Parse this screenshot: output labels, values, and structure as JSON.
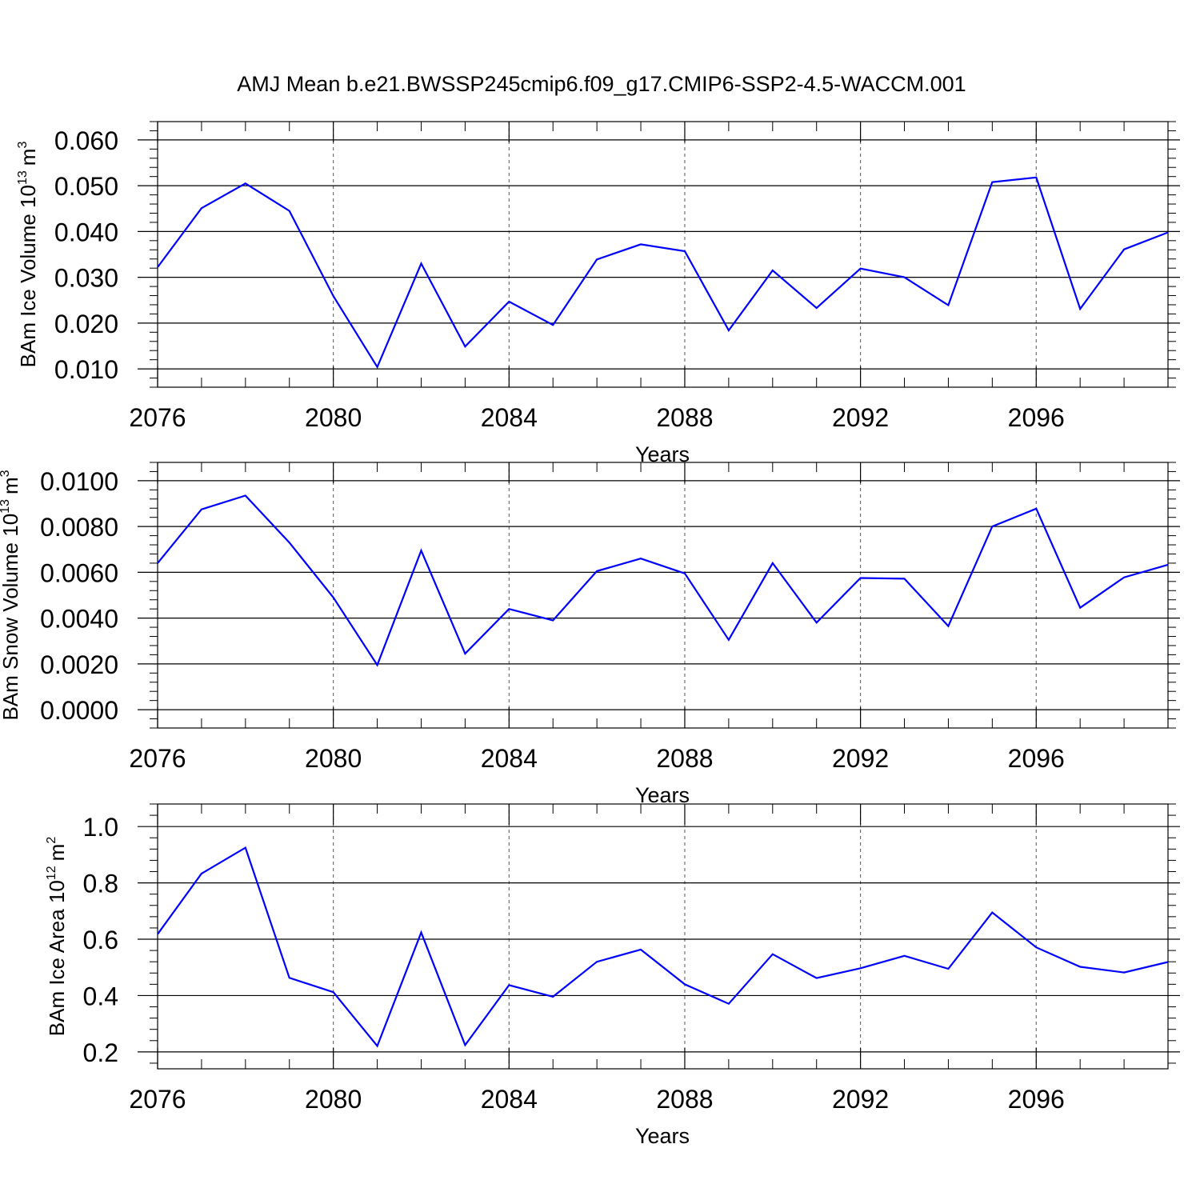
{
  "figure_title": "AMJ Mean b.e21.BWSSP245cmip6.f09_g17.CMIP6-SSP2-4.5-WACCM.001",
  "series_color": "#0000ff",
  "chart_data": [
    {
      "type": "line",
      "title": "AMJ Mean b.e21.BWSSP245cmip6.f09_g17.CMIP6-SSP2-4.5-WACCM.001",
      "xlabel": "Years",
      "ylabel_main": "BAm Ice Volume 10",
      "ylabel_exp": "13",
      "ylabel_unit": "m",
      "ylabel_unit_exp": "3",
      "xlim": [
        2076,
        2099
      ],
      "ylim": [
        0.006,
        0.064
      ],
      "xticks": [
        2076,
        2080,
        2084,
        2088,
        2092,
        2096
      ],
      "xtick_labels": [
        "2076",
        "2080",
        "2084",
        "2088",
        "2092",
        "2096"
      ],
      "yticks": [
        0.01,
        0.02,
        0.03,
        0.04,
        0.05,
        0.06
      ],
      "ytick_labels": [
        "0.010",
        "0.020",
        "0.030",
        "0.040",
        "0.050",
        "0.060"
      ],
      "grid_x": true,
      "x": [
        2076,
        2077,
        2078,
        2079,
        2080,
        2081,
        2082,
        2083,
        2084,
        2085,
        2086,
        2087,
        2088,
        2089,
        2090,
        2091,
        2092,
        2093,
        2094,
        2095,
        2096,
        2097,
        2098,
        2099
      ],
      "values": [
        0.0322,
        0.0451,
        0.0505,
        0.0445,
        0.0259,
        0.0104,
        0.033,
        0.0149,
        0.0247,
        0.0196,
        0.0339,
        0.0372,
        0.0357,
        0.0184,
        0.0315,
        0.0233,
        0.0319,
        0.03,
        0.0239,
        0.0508,
        0.0518,
        0.0231,
        0.0361,
        0.0398
      ]
    },
    {
      "type": "line",
      "xlabel": "Years",
      "ylabel_main": "BAm Snow Volume 10",
      "ylabel_exp": "13",
      "ylabel_unit": "m",
      "ylabel_unit_exp": "3",
      "xlim": [
        2076,
        2099
      ],
      "ylim": [
        -0.0008,
        0.0108
      ],
      "xticks": [
        2076,
        2080,
        2084,
        2088,
        2092,
        2096
      ],
      "xtick_labels": [
        "2076",
        "2080",
        "2084",
        "2088",
        "2092",
        "2096"
      ],
      "yticks": [
        0.0,
        0.002,
        0.004,
        0.006,
        0.008,
        0.01
      ],
      "ytick_labels": [
        "0.0000",
        "0.0020",
        "0.0040",
        "0.0060",
        "0.0080",
        "0.0100"
      ],
      "grid_x": true,
      "x": [
        2076,
        2077,
        2078,
        2079,
        2080,
        2081,
        2082,
        2083,
        2084,
        2085,
        2086,
        2087,
        2088,
        2089,
        2090,
        2091,
        2092,
        2093,
        2094,
        2095,
        2096,
        2097,
        2098,
        2099
      ],
      "values": [
        0.0064,
        0.00875,
        0.00935,
        0.0073,
        0.0049,
        0.00195,
        0.00695,
        0.00245,
        0.0044,
        0.0039,
        0.00605,
        0.0066,
        0.00595,
        0.00305,
        0.0064,
        0.0038,
        0.00575,
        0.00572,
        0.00365,
        0.008,
        0.00878,
        0.00445,
        0.00578,
        0.00633
      ]
    },
    {
      "type": "line",
      "xlabel": "Years",
      "ylabel_main": "BAm Ice Area 10",
      "ylabel_exp": "12",
      "ylabel_unit": "m",
      "ylabel_unit_exp": "2",
      "xlim": [
        2076,
        2099
      ],
      "ylim": [
        0.14,
        1.08
      ],
      "xticks": [
        2076,
        2080,
        2084,
        2088,
        2092,
        2096
      ],
      "xtick_labels": [
        "2076",
        "2080",
        "2084",
        "2088",
        "2092",
        "2096"
      ],
      "yticks": [
        0.2,
        0.4,
        0.6,
        0.8,
        1.0
      ],
      "ytick_labels": [
        "0.2",
        "0.4",
        "0.6",
        "0.8",
        "1.0"
      ],
      "grid_x": true,
      "x": [
        2076,
        2077,
        2078,
        2079,
        2080,
        2081,
        2082,
        2083,
        2084,
        2085,
        2086,
        2087,
        2088,
        2089,
        2090,
        2091,
        2092,
        2093,
        2094,
        2095,
        2096,
        2097,
        2098,
        2099
      ],
      "values": [
        0.618,
        0.833,
        0.925,
        0.463,
        0.412,
        0.221,
        0.624,
        0.224,
        0.437,
        0.396,
        0.52,
        0.563,
        0.44,
        0.371,
        0.547,
        0.462,
        0.497,
        0.541,
        0.495,
        0.695,
        0.571,
        0.502,
        0.482,
        0.519
      ]
    }
  ]
}
